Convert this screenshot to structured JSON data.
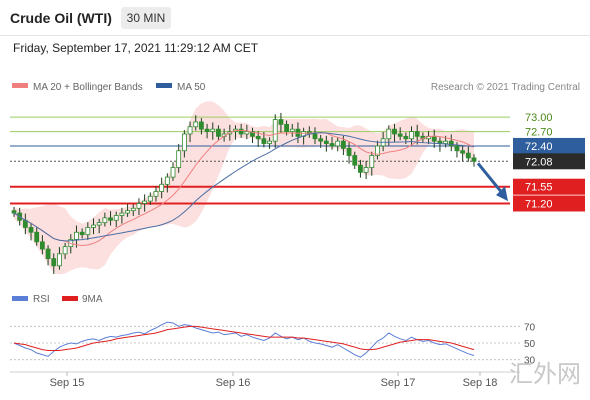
{
  "header": {
    "instrument": "Crude Oil (WTI)",
    "timeframe": "30 MIN",
    "datetime": "Friday, September 17, 2021 11:29:12 AM CET"
  },
  "legend": {
    "ma20": "MA 20 + Bollinger Bands",
    "ma50": "MA 50",
    "copyright": "Research © 2021 Trading Central",
    "rsi": "RSI",
    "rsi_ma": "9MA"
  },
  "colors": {
    "ma20": "#f08080",
    "bollinger_fill": "#fbd9d9",
    "ma50": "#4a6fa5",
    "resistance": "#9ccc65",
    "pivot": "#2f5e9e",
    "support": "#e02020",
    "last_price": "#2b2b2b",
    "candle_up": "#2e8b2e",
    "candle_down": "#2e8b2e",
    "arrow": "#2f5e9e",
    "rsi": "#5b7fd6",
    "rsi_ma": "#e02020"
  },
  "chart_data": {
    "type": "candlestick",
    "x_ticks": [
      "Sep 15",
      "Sep 16",
      "Sep 17",
      "Sep 18"
    ],
    "price_levels": [
      {
        "value": "73.00",
        "kind": "resistance"
      },
      {
        "value": "72.70",
        "kind": "resistance"
      },
      {
        "value": "72.40",
        "kind": "pivot"
      },
      {
        "value": "72.08",
        "kind": "last"
      },
      {
        "value": "71.55",
        "kind": "support"
      },
      {
        "value": "71.20",
        "kind": "support"
      }
    ],
    "price_range": [
      69.5,
      73.4
    ],
    "close_series": [
      71.0,
      70.85,
      70.7,
      70.6,
      70.4,
      70.25,
      70.05,
      69.9,
      70.15,
      70.3,
      70.45,
      70.6,
      70.55,
      70.7,
      70.75,
      70.8,
      70.9,
      70.85,
      70.95,
      71.0,
      71.05,
      71.1,
      71.2,
      71.25,
      71.35,
      71.45,
      71.6,
      71.75,
      71.95,
      72.3,
      72.65,
      72.8,
      72.9,
      72.75,
      72.7,
      72.75,
      72.6,
      72.65,
      72.7,
      72.75,
      72.65,
      72.7,
      72.6,
      72.55,
      72.45,
      72.5,
      72.95,
      72.85,
      72.7,
      72.75,
      72.6,
      72.7,
      72.65,
      72.55,
      72.5,
      72.45,
      72.4,
      72.5,
      72.35,
      72.2,
      72.0,
      71.85,
      71.95,
      72.2,
      72.4,
      72.55,
      72.75,
      72.65,
      72.6,
      72.55,
      72.7,
      72.6,
      72.55,
      72.6,
      72.5,
      72.45,
      72.5,
      72.4,
      72.3,
      72.25,
      72.15,
      72.08
    ],
    "rsi": {
      "levels": [
        70,
        50,
        30
      ],
      "rsi_values": [
        50,
        47,
        44,
        42,
        38,
        36,
        34,
        40,
        45,
        48,
        50,
        49,
        52,
        54,
        55,
        53,
        56,
        58,
        57,
        59,
        60,
        62,
        63,
        61,
        65,
        68,
        72,
        75,
        74,
        70,
        72,
        71,
        68,
        66,
        64,
        62,
        63,
        60,
        61,
        62,
        58,
        60,
        57,
        55,
        53,
        56,
        62,
        58,
        55,
        57,
        54,
        56,
        52,
        50,
        49,
        47,
        45,
        48,
        44,
        40,
        36,
        33,
        38,
        45,
        52,
        56,
        62,
        58,
        55,
        53,
        57,
        54,
        52,
        53,
        50,
        48,
        49,
        46,
        43,
        40,
        37,
        35
      ],
      "ma_values": [
        50,
        49,
        48,
        46,
        44,
        42,
        41,
        41,
        41,
        42,
        43,
        44,
        46,
        48,
        50,
        51,
        52,
        53,
        55,
        56,
        57,
        58,
        59,
        60,
        61,
        62,
        64,
        66,
        67,
        68,
        69,
        70,
        70,
        69,
        68,
        67,
        66,
        65,
        64,
        63,
        62,
        61,
        60,
        59,
        58,
        57,
        57,
        57,
        57,
        57,
        56,
        56,
        55,
        54,
        53,
        52,
        51,
        50,
        49,
        47,
        45,
        43,
        42,
        42,
        43,
        45,
        47,
        49,
        51,
        52,
        53,
        54,
        54,
        54,
        53,
        52,
        51,
        50,
        48,
        46,
        44,
        42
      ]
    }
  },
  "watermark": "汇外网"
}
